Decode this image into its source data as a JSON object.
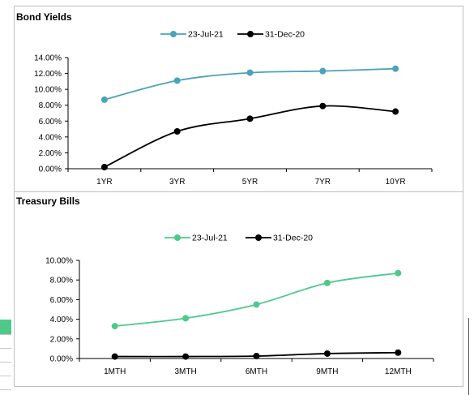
{
  "chart_data": [
    {
      "type": "line",
      "title": "Bond Yields",
      "categories": [
        "1YR",
        "3YR",
        "5YR",
        "7YR",
        "10YR"
      ],
      "series": [
        {
          "name": "23-Jul-21",
          "values": [
            8.7,
            11.1,
            12.1,
            12.3,
            12.6
          ],
          "color": "#4aa3b8"
        },
        {
          "name": "31-Dec-20",
          "values": [
            0.2,
            4.7,
            6.3,
            7.9,
            7.2
          ],
          "color": "#000000"
        }
      ],
      "y_ticks": [
        "0.00%",
        "2.00%",
        "4.00%",
        "6.00%",
        "8.00%",
        "10.00%",
        "12.00%",
        "14.00%"
      ],
      "ylim": [
        0,
        14
      ],
      "legend": "top-center",
      "grid": false
    },
    {
      "type": "line",
      "title": "Treasury  Bills",
      "categories": [
        "1MTH",
        "3MTH",
        "6MTH",
        "9MTH",
        "12MTH"
      ],
      "series": [
        {
          "name": "23-Jul-21",
          "values": [
            3.3,
            4.1,
            5.5,
            7.7,
            8.7
          ],
          "color": "#4ec98a"
        },
        {
          "name": "31-Dec-20",
          "values": [
            0.2,
            0.2,
            0.25,
            0.5,
            0.6
          ],
          "color": "#000000"
        }
      ],
      "y_ticks": [
        "0.00%",
        "2.00%",
        "4.00%",
        "6.00%",
        "8.00%",
        "10.00%"
      ],
      "ylim": [
        0,
        10
      ],
      "legend": "top-center",
      "grid": false
    }
  ],
  "background": {
    "accent_color": "#4ec98a"
  }
}
